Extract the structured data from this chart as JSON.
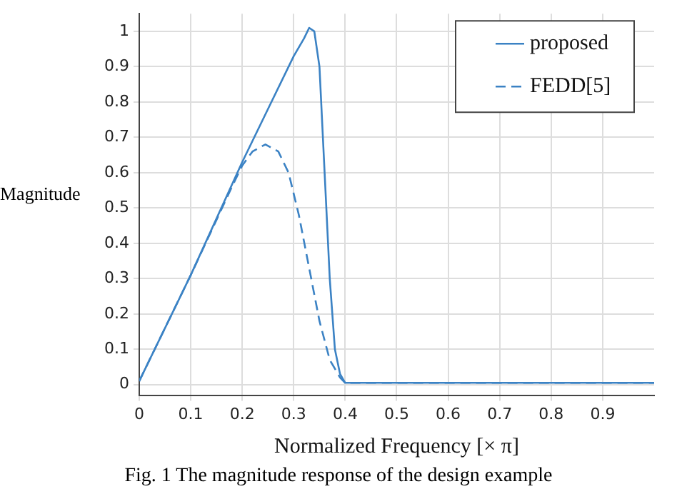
{
  "chart_data": {
    "type": "line",
    "xlabel": "Normalized Frequency [× π]",
    "ylabel": "Magnitude",
    "xlim": [
      0,
      1
    ],
    "ylim": [
      -0.03,
      1.05
    ],
    "xticks": [
      0,
      0.1,
      0.2,
      0.3,
      0.4,
      0.5,
      0.6,
      0.7,
      0.8,
      0.9
    ],
    "yticks": [
      0,
      0.1,
      0.2,
      0.3,
      0.4,
      0.5,
      0.6,
      0.7,
      0.8,
      0.9,
      1
    ],
    "grid": true,
    "legend": "top right",
    "marker": "none",
    "annotations": [
      "Fig. 1 The magnitude response of the design example"
    ],
    "series": [
      {
        "name": "proposed",
        "color": "#3b82c4",
        "line_style": "solid",
        "x": [
          0,
          0.1,
          0.2,
          0.25,
          0.3,
          0.32,
          0.33,
          0.34,
          0.35,
          0.36,
          0.37,
          0.38,
          0.39,
          0.4,
          0.5,
          0.6,
          0.7,
          0.8,
          0.9,
          1
        ],
        "values": [
          0.01,
          0.31,
          0.63,
          0.78,
          0.93,
          0.98,
          1.01,
          1.0,
          0.9,
          0.6,
          0.3,
          0.1,
          0.03,
          0.005,
          0.005,
          0.005,
          0.005,
          0.005,
          0.005,
          0.005
        ]
      },
      {
        "name": "FEDD[5]",
        "color": "#3b82c4",
        "line_style": "dashed",
        "x": [
          0,
          0.1,
          0.18,
          0.2,
          0.22,
          0.245,
          0.27,
          0.29,
          0.31,
          0.33,
          0.35,
          0.37,
          0.39,
          0.4,
          0.5,
          0.6,
          0.7,
          0.8,
          0.9,
          1
        ],
        "values": [
          0.01,
          0.31,
          0.56,
          0.62,
          0.66,
          0.68,
          0.66,
          0.6,
          0.48,
          0.33,
          0.18,
          0.07,
          0.02,
          0.005,
          0.005,
          0.005,
          0.005,
          0.005,
          0.005,
          0.005
        ]
      }
    ]
  }
}
